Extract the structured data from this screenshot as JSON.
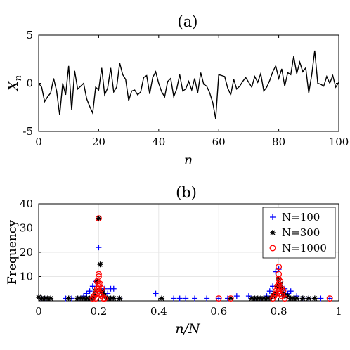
{
  "chart_data": [
    {
      "id": "a",
      "type": "line",
      "title": "(a)",
      "xlabel": "n",
      "ylabel": "X",
      "ylabel_sub": "n",
      "xlim": [
        0,
        100
      ],
      "ylim": [
        -5,
        5
      ],
      "xticks": [
        "0",
        "20",
        "40",
        "60",
        "80",
        "100"
      ],
      "yticks": [
        "5",
        "0",
        "-5"
      ],
      "grid": false,
      "series": [
        {
          "color": "#000000",
          "x": [
            0,
            1,
            2,
            3,
            4,
            5,
            6,
            7,
            8,
            9,
            10,
            11,
            12,
            13,
            14,
            15,
            16,
            17,
            18,
            19,
            20,
            21,
            22,
            23,
            24,
            25,
            26,
            27,
            28,
            29,
            30,
            31,
            32,
            33,
            34,
            35,
            36,
            37,
            38,
            39,
            40,
            41,
            42,
            43,
            44,
            45,
            46,
            47,
            48,
            49,
            50,
            51,
            52,
            53,
            54,
            55,
            56,
            57,
            58,
            59,
            60,
            61,
            62,
            63,
            64,
            65,
            66,
            67,
            68,
            69,
            70,
            71,
            72,
            73,
            74,
            75,
            76,
            77,
            78,
            79,
            80,
            81,
            82,
            83,
            84,
            85,
            86,
            87,
            88,
            89,
            90,
            91,
            92,
            93,
            94,
            95,
            96,
            97,
            98,
            99,
            100
          ],
          "y": [
            0,
            -0.4,
            -1.9,
            -1.4,
            -1,
            0.5,
            -0.8,
            -3.3,
            0,
            -1.2,
            1.8,
            -2.8,
            1.3,
            -0.6,
            -0.3,
            0,
            -1.6,
            -2.4,
            -3.1,
            -0.4,
            -0.7,
            1.6,
            -1.2,
            -0.5,
            1.6,
            -0.9,
            -0.4,
            2.1,
            0.9,
            0.4,
            -1.8,
            -0.8,
            -0.7,
            -1.2,
            -0.9,
            0.6,
            0.8,
            -1.1,
            0.6,
            1.2,
            0,
            -0.9,
            -1.4,
            0.2,
            0.5,
            -1.4,
            -0.6,
            0.9,
            -0.8,
            -0.6,
            0.2,
            -0.7,
            0.5,
            -1,
            1.1,
            -0.1,
            -0.3,
            -1,
            -2,
            -3.7,
            0.9,
            0.8,
            0.7,
            -0.5,
            -1.2,
            0.4,
            -0.6,
            -0.3,
            0.2,
            0.6,
            0.1,
            -0.4,
            0.7,
            0.1,
            1,
            -0.8,
            -0.4,
            0.3,
            1.2,
            1.8,
            0.5,
            1.5,
            -0.3,
            1.1,
            0.9,
            2.8,
            1,
            2.2,
            1.2,
            1.6,
            -1,
            0.9,
            3.4,
            0,
            -0.1,
            -0.3,
            0.7,
            0,
            0.8,
            -0.4,
            0.1
          ]
        }
      ]
    },
    {
      "id": "b",
      "type": "scatter",
      "title": "(b)",
      "xlabel": "n/N",
      "ylabel": "Frequency",
      "xlim": [
        0,
        1
      ],
      "ylim": [
        0,
        40
      ],
      "xticks": [
        "0",
        "0.2",
        "0.4",
        "0.6",
        "0.8",
        "1"
      ],
      "yticks": [
        "40",
        "30",
        "20",
        "10"
      ],
      "grid": true,
      "legend_position": "top-right",
      "series": [
        {
          "name": "N=100",
          "marker": "plus",
          "color": "#0000ff",
          "x": [
            0.01,
            0.02,
            0.09,
            0.11,
            0.13,
            0.15,
            0.16,
            0.17,
            0.18,
            0.19,
            0.2,
            0.21,
            0.22,
            0.23,
            0.24,
            0.25,
            0.27,
            0.39,
            0.45,
            0.47,
            0.49,
            0.52,
            0.56,
            0.6,
            0.63,
            0.66,
            0.7,
            0.72,
            0.74,
            0.76,
            0.77,
            0.78,
            0.79,
            0.8,
            0.81,
            0.82,
            0.83,
            0.84,
            0.86,
            0.88,
            0.9,
            0.94,
            0.97
          ],
          "y": [
            1,
            1,
            1,
            1,
            1,
            2,
            3,
            4,
            6,
            8,
            22,
            4,
            5,
            3,
            5,
            5,
            1,
            3,
            1,
            1,
            1,
            1,
            1,
            1,
            1,
            2,
            2,
            1,
            1,
            2,
            4,
            6,
            12,
            13,
            3,
            5,
            3,
            4,
            2,
            1,
            1,
            1,
            1
          ]
        },
        {
          "name": "N=300",
          "marker": "star",
          "color": "#000000",
          "x": [
            0.0,
            0.01,
            0.02,
            0.03,
            0.04,
            0.1,
            0.13,
            0.14,
            0.15,
            0.16,
            0.17,
            0.18,
            0.185,
            0.19,
            0.195,
            0.2,
            0.205,
            0.21,
            0.215,
            0.22,
            0.23,
            0.24,
            0.25,
            0.27,
            0.41,
            0.64,
            0.71,
            0.72,
            0.73,
            0.74,
            0.75,
            0.76,
            0.77,
            0.78,
            0.785,
            0.79,
            0.795,
            0.8,
            0.805,
            0.81,
            0.815,
            0.82,
            0.83,
            0.84,
            0.85,
            0.86,
            0.88,
            0.9,
            0.92
          ],
          "y": [
            1.5,
            1,
            1,
            1,
            1,
            1,
            1,
            1,
            1,
            1,
            1,
            1,
            2,
            4,
            8,
            34,
            15,
            4,
            3,
            2,
            1,
            1,
            1,
            1,
            1,
            1,
            1,
            1,
            1,
            1,
            1,
            1,
            1,
            2,
            3,
            3,
            6,
            9,
            7,
            5,
            3,
            2,
            2,
            1,
            1,
            1,
            1,
            1,
            1
          ]
        },
        {
          "name": "N=1000",
          "marker": "circle",
          "color": "#ff0000",
          "x": [
            0.18,
            0.185,
            0.19,
            0.19,
            0.195,
            0.195,
            0.2,
            0.2,
            0.2,
            0.2,
            0.2,
            0.2,
            0.2,
            0.205,
            0.205,
            0.21,
            0.21,
            0.215,
            0.22,
            0.6,
            0.64,
            0.78,
            0.785,
            0.79,
            0.79,
            0.795,
            0.8,
            0.8,
            0.8,
            0.8,
            0.8,
            0.8,
            0.805,
            0.805,
            0.81,
            0.81,
            0.815,
            0.82,
            0.97
          ],
          "y": [
            1,
            2,
            1,
            3,
            5,
            8,
            34,
            11,
            10,
            7,
            6,
            5,
            4,
            7,
            3,
            2,
            5,
            1,
            1,
            1,
            1,
            1,
            2,
            3,
            4,
            6,
            14,
            11,
            9,
            7,
            5,
            4,
            8,
            3,
            5,
            2,
            4,
            1,
            1
          ]
        }
      ]
    }
  ]
}
